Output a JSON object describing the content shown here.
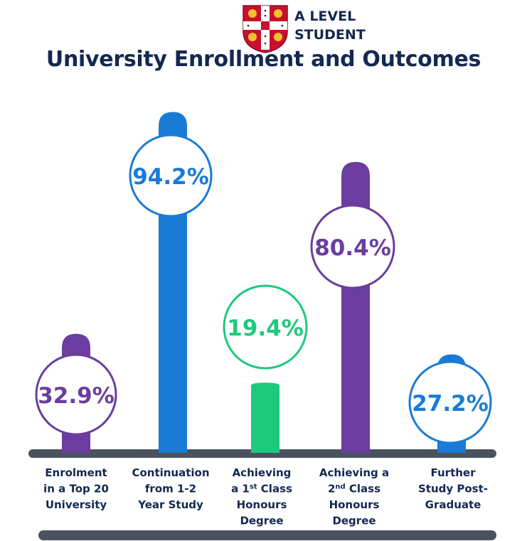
{
  "brand": {
    "line1": "A LEVEL",
    "line2": "STUDENT",
    "logo": "coat-of-arms"
  },
  "colors": {
    "navy": "#142850",
    "blue": "#1a7bd6",
    "purple": "#6a3d9f",
    "green": "#1fc97c",
    "axis": "#4a5260"
  },
  "chart_data": {
    "type": "bar",
    "title": "University Enrollment and Outcomes",
    "categories": [
      [
        "Enrolment",
        "in a Top 20",
        "University"
      ],
      [
        "Continuation",
        "from 1-2",
        "Year Study"
      ],
      [
        "Achieving",
        "a 1st Class",
        "Honours",
        "Degree"
      ],
      [
        "Achieving a",
        "2nd Class",
        "Honours",
        "Degree"
      ],
      [
        "Further",
        "Study Post-",
        "Graduate"
      ]
    ],
    "values": [
      32.9,
      94.2,
      19.4,
      80.4,
      27.2
    ],
    "labels": [
      "32.9%",
      "94.2%",
      "19.4%",
      "80.4%",
      "27.2%"
    ],
    "bar_colors": [
      "#6a3d9f",
      "#1a7bd6",
      "#1fc97c",
      "#6a3d9f",
      "#1a7bd6"
    ],
    "ylim": [
      0,
      100
    ],
    "unit": "%"
  }
}
